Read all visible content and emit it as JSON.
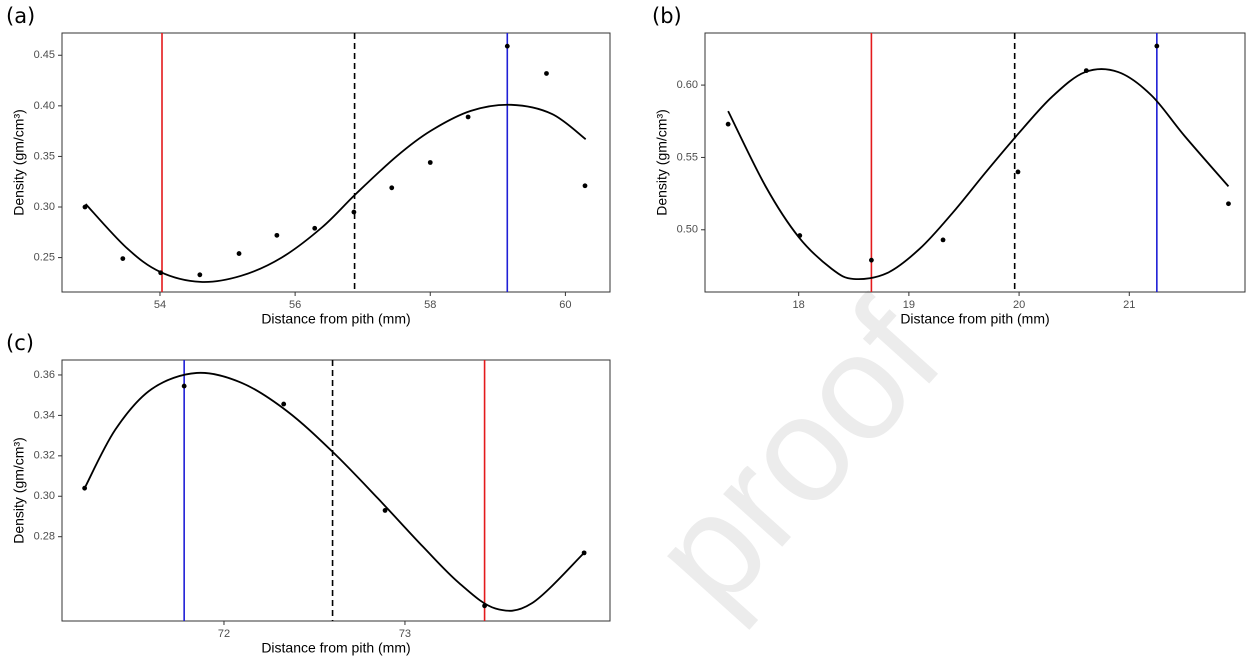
{
  "watermark": "proof",
  "chart_data": [
    {
      "type": "scatter",
      "panel_label": "(a)",
      "x_label": "Distance from pith (mm)",
      "y_label": "Density (gm/cm³)",
      "xlim": [
        52.55,
        60.66
      ],
      "ylim": [
        0.216,
        0.472
      ],
      "xticks": [
        54,
        56,
        58,
        60
      ],
      "yticks": [
        0.25,
        {
          "value": 0.3,
          "label": "0.30"
        },
        0.35,
        {
          "value": 0.4,
          "label": "0.40"
        },
        0.45
      ],
      "points": {
        "color": "#000000",
        "x": [
          52.89,
          53.45,
          54.01,
          54.59,
          55.17,
          55.73,
          56.29,
          56.87,
          57.43,
          58.0,
          58.56,
          59.14,
          59.72,
          60.29
        ],
        "y": [
          0.3,
          0.249,
          0.235,
          0.233,
          0.254,
          0.272,
          0.279,
          0.295,
          0.319,
          0.344,
          0.389,
          0.459,
          0.432,
          0.321
        ]
      },
      "fit": {
        "color": "#000000",
        "x": [
          52.9,
          53.5,
          54.0,
          54.6,
          55.2,
          55.8,
          56.4,
          56.9,
          57.5,
          58.0,
          58.6,
          59.2,
          59.8,
          60.3
        ],
        "y": [
          0.303,
          0.26,
          0.236,
          0.226,
          0.232,
          0.25,
          0.28,
          0.313,
          0.35,
          0.375,
          0.395,
          0.401,
          0.392,
          0.367
        ]
      },
      "vlines": [
        {
          "x": 54.03,
          "color": "#e41a1c",
          "dashed": false
        },
        {
          "x": 56.88,
          "color": "#000000",
          "dashed": true
        },
        {
          "x": 59.14,
          "color": "#1f1fd6",
          "dashed": false
        }
      ]
    },
    {
      "type": "scatter",
      "panel_label": "(b)",
      "x_label": "Distance from pith (mm)",
      "y_label": "Density (gm/cm³)",
      "xlim": [
        17.15,
        22.05
      ],
      "ylim": [
        0.457,
        0.636
      ],
      "xticks": [
        18,
        19,
        20,
        21
      ],
      "yticks": [
        {
          "value": 0.5,
          "label": "0.50"
        },
        0.55,
        {
          "value": 0.6,
          "label": "0.60"
        }
      ],
      "points": {
        "color": "#000000",
        "x": [
          17.36,
          18.01,
          18.66,
          19.31,
          19.99,
          20.61,
          21.25,
          21.9
        ],
        "y": [
          0.573,
          0.496,
          0.479,
          0.493,
          0.54,
          0.61,
          0.627,
          0.518
        ]
      },
      "fit": {
        "color": "#000000",
        "x": [
          17.36,
          17.7,
          18.0,
          18.3,
          18.5,
          18.8,
          19.1,
          19.4,
          19.7,
          20.0,
          20.3,
          20.6,
          20.9,
          21.2,
          21.5,
          21.9
        ],
        "y": [
          0.582,
          0.53,
          0.495,
          0.473,
          0.466,
          0.47,
          0.487,
          0.512,
          0.54,
          0.567,
          0.592,
          0.609,
          0.609,
          0.593,
          0.565,
          0.53
        ]
      },
      "vlines": [
        {
          "x": 18.66,
          "color": "#e41a1c",
          "dashed": false
        },
        {
          "x": 19.96,
          "color": "#000000",
          "dashed": true
        },
        {
          "x": 21.25,
          "color": "#1f1fd6",
          "dashed": false
        }
      ]
    },
    {
      "type": "scatter",
      "panel_label": "(c)",
      "x_label": "Distance from pith (mm)",
      "y_label": "Density (gm/cm³)",
      "xlim": [
        71.105,
        74.133
      ],
      "ylim": [
        0.2383,
        0.3674
      ],
      "xticks": [
        72,
        73
      ],
      "yticks": [
        0.28,
        {
          "value": 0.3,
          "label": "0.30"
        },
        0.32,
        0.34,
        0.36
      ],
      "points": {
        "color": "#000000",
        "x": [
          71.23,
          71.78,
          72.33,
          72.89,
          73.44,
          73.99
        ],
        "y": [
          0.304,
          0.3545,
          0.3456,
          0.293,
          0.2458,
          0.272
        ]
      },
      "fit": {
        "color": "#000000",
        "x": [
          71.23,
          71.4,
          71.6,
          71.85,
          72.1,
          72.35,
          72.6,
          72.85,
          73.1,
          73.3,
          73.5,
          73.7,
          73.99
        ],
        "y": [
          0.304,
          0.333,
          0.353,
          0.361,
          0.356,
          0.342,
          0.322,
          0.299,
          0.275,
          0.257,
          0.2445,
          0.247,
          0.272
        ]
      },
      "vlines": [
        {
          "x": 71.78,
          "color": "#1f1fd6",
          "dashed": false
        },
        {
          "x": 72.6,
          "color": "#000000",
          "dashed": true
        },
        {
          "x": 73.44,
          "color": "#e41a1c",
          "dashed": false
        }
      ]
    }
  ]
}
